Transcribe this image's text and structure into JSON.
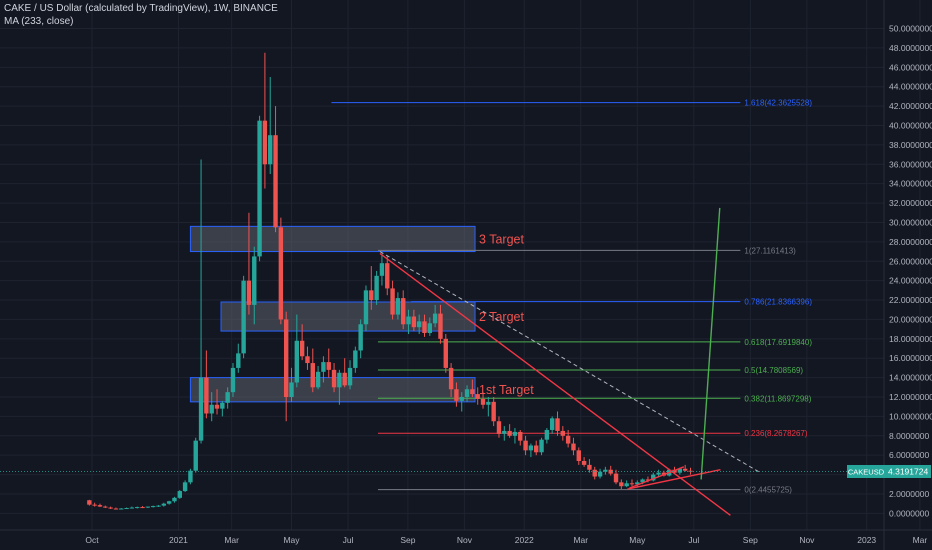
{
  "header": {
    "symbol_line": "CAKE / US Dollar (calculated by TradingView), 1W, BINANCE",
    "indicator_line": "MA (233, close)"
  },
  "price_label": {
    "symbol": "CAKEUSD",
    "value": "4.3191724"
  },
  "colors": {
    "background": "#131722",
    "grid": "#1f2330",
    "text": "#b2b5be",
    "up": "#26a69a",
    "down": "#ef5350",
    "trend": "#f23645",
    "projection": "#4caf50",
    "zone_fill": "#5d606b",
    "zone_border": "#2962ff"
  },
  "chart_data": {
    "type": "candlestick",
    "title": "CAKE / US Dollar (calculated by TradingView), 1W, BINANCE",
    "y_ticks": [
      0,
      2,
      4,
      6,
      8,
      10,
      12,
      14,
      16,
      18,
      20,
      22,
      24,
      26,
      28,
      30,
      32,
      34,
      36,
      38,
      40,
      42,
      44,
      46,
      48,
      50
    ],
    "y_tick_labels": [
      "0.0000000",
      "2.0000000",
      "4.0000000",
      "6.0000000",
      "8.0000000",
      "10.0000000",
      "12.0000000",
      "14.0000000",
      "16.0000000",
      "18.0000000",
      "20.0000000",
      "22.0000000",
      "24.0000000",
      "26.0000000",
      "28.0000000",
      "30.0000000",
      "32.0000000",
      "34.0000000",
      "36.0000000",
      "38.0000000",
      "40.0000000",
      "42.0000000",
      "44.0000000",
      "46.0000000",
      "48.0000000",
      "50.0000000"
    ],
    "ylim": [
      -1.2,
      51.5
    ],
    "x_ticks": [
      {
        "label": "Oct",
        "week": 0
      },
      {
        "label": "2021",
        "week": 13
      },
      {
        "label": "Mar",
        "week": 21
      },
      {
        "label": "May",
        "week": 30
      },
      {
        "label": "Jul",
        "week": 38.5
      },
      {
        "label": "Sep",
        "week": 47.5
      },
      {
        "label": "Nov",
        "week": 56
      },
      {
        "label": "2022",
        "week": 65
      },
      {
        "label": "Mar",
        "week": 73.5
      },
      {
        "label": "May",
        "week": 82
      },
      {
        "label": "Jul",
        "week": 90.5
      },
      {
        "label": "Sep",
        "week": 99
      },
      {
        "label": "Nov",
        "week": 107.5
      },
      {
        "label": "2023",
        "week": 116.5
      },
      {
        "label": "Mar",
        "week": 124.5
      }
    ],
    "candles": [
      [
        -0.4,
        1.35,
        1.4,
        0.8,
        0.9
      ],
      [
        0.4,
        0.9,
        1.1,
        0.7,
        0.85
      ],
      [
        1.2,
        0.85,
        1.0,
        0.65,
        0.7
      ],
      [
        2.0,
        0.7,
        0.8,
        0.55,
        0.6
      ],
      [
        2.8,
        0.6,
        0.7,
        0.45,
        0.5
      ],
      [
        3.6,
        0.5,
        0.6,
        0.4,
        0.45
      ],
      [
        4.4,
        0.45,
        0.55,
        0.4,
        0.5
      ],
      [
        5.2,
        0.5,
        0.6,
        0.45,
        0.55
      ],
      [
        6.0,
        0.55,
        0.7,
        0.5,
        0.6
      ],
      [
        6.8,
        0.6,
        0.7,
        0.5,
        0.65
      ],
      [
        7.6,
        0.65,
        0.75,
        0.55,
        0.6
      ],
      [
        8.4,
        0.6,
        0.7,
        0.55,
        0.7
      ],
      [
        9.2,
        0.7,
        0.8,
        0.6,
        0.75
      ],
      [
        10.0,
        0.75,
        0.85,
        0.65,
        0.8
      ],
      [
        10.8,
        0.8,
        1.1,
        0.7,
        1.0
      ],
      [
        11.6,
        1.0,
        1.3,
        0.9,
        1.25
      ],
      [
        12.4,
        1.25,
        1.7,
        1.1,
        1.6
      ],
      [
        13.2,
        1.6,
        2.4,
        1.5,
        2.3
      ],
      [
        14.0,
        2.3,
        3.4,
        2.2,
        3.2
      ],
      [
        14.8,
        3.2,
        4.6,
        3.0,
        4.4
      ],
      [
        15.6,
        4.4,
        7.8,
        4.2,
        7.5
      ],
      [
        16.4,
        7.5,
        36.5,
        7.2,
        14.0
      ],
      [
        17.2,
        14.0,
        16.8,
        9.8,
        10.3
      ],
      [
        18.0,
        10.3,
        12.5,
        9.5,
        11.2
      ],
      [
        18.8,
        11.2,
        12.8,
        10.2,
        10.8
      ],
      [
        19.6,
        10.8,
        11.6,
        10.0,
        11.4
      ],
      [
        20.4,
        11.4,
        13.0,
        10.8,
        12.5
      ],
      [
        21.2,
        12.5,
        15.5,
        12.0,
        15.0
      ],
      [
        22.0,
        15.0,
        17.5,
        14.5,
        16.5
      ],
      [
        22.8,
        16.5,
        24.5,
        16.0,
        24.0
      ],
      [
        23.6,
        24.0,
        31.0,
        20.5,
        21.5
      ],
      [
        24.4,
        21.5,
        27.5,
        19.5,
        26.5
      ],
      [
        25.2,
        26.5,
        41.0,
        26.0,
        40.5
      ],
      [
        26.0,
        40.5,
        47.5,
        33.5,
        36.0
      ],
      [
        26.8,
        36.0,
        45.0,
        35.0,
        39.0
      ],
      [
        27.6,
        39.0,
        42.0,
        29.0,
        29.5
      ],
      [
        28.4,
        29.5,
        30.5,
        19.5,
        20.0
      ],
      [
        29.2,
        20.0,
        20.8,
        9.5,
        12.0
      ],
      [
        30.0,
        12.0,
        15.0,
        11.5,
        13.5
      ],
      [
        30.8,
        13.5,
        20.5,
        13.0,
        17.8
      ],
      [
        31.6,
        17.8,
        19.5,
        15.8,
        16.2
      ],
      [
        32.4,
        16.2,
        17.2,
        14.8,
        15.5
      ],
      [
        33.2,
        15.5,
        17.0,
        12.5,
        13.0
      ],
      [
        34.0,
        13.0,
        15.2,
        12.8,
        14.6
      ],
      [
        34.8,
        14.6,
        16.2,
        13.5,
        15.6
      ],
      [
        35.6,
        15.6,
        17.0,
        14.0,
        14.8
      ],
      [
        36.4,
        14.8,
        15.5,
        12.5,
        13.0
      ],
      [
        37.2,
        13.0,
        14.8,
        11.2,
        14.5
      ],
      [
        38.0,
        14.5,
        16.0,
        13.0,
        13.2
      ],
      [
        38.8,
        13.2,
        15.8,
        12.8,
        15.0
      ],
      [
        39.6,
        15.0,
        17.2,
        14.5,
        16.8
      ],
      [
        40.4,
        16.8,
        20.0,
        16.0,
        19.5
      ],
      [
        41.2,
        19.5,
        23.5,
        18.8,
        23.0
      ],
      [
        42.0,
        23.0,
        25.5,
        21.0,
        22.0
      ],
      [
        42.8,
        22.0,
        25.0,
        21.5,
        24.5
      ],
      [
        43.6,
        24.5,
        26.8,
        23.5,
        25.8
      ],
      [
        44.4,
        25.8,
        26.5,
        22.5,
        23.2
      ],
      [
        45.2,
        23.2,
        24.0,
        20.0,
        20.5
      ],
      [
        46.0,
        20.5,
        22.8,
        20.0,
        22.2
      ],
      [
        46.8,
        22.2,
        23.0,
        19.0,
        19.5
      ],
      [
        47.6,
        19.5,
        21.0,
        18.5,
        20.3
      ],
      [
        48.4,
        20.3,
        21.0,
        18.8,
        19.2
      ],
      [
        49.2,
        19.2,
        20.5,
        18.5,
        19.8
      ],
      [
        50.0,
        19.8,
        20.5,
        18.2,
        18.6
      ],
      [
        50.8,
        18.6,
        20.2,
        18.3,
        19.6
      ],
      [
        51.6,
        19.6,
        21.5,
        19.2,
        20.6
      ],
      [
        52.4,
        20.6,
        21.5,
        17.5,
        18.0
      ],
      [
        53.2,
        18.0,
        18.5,
        14.5,
        15.0
      ],
      [
        54.0,
        15.0,
        15.5,
        12.0,
        12.8
      ],
      [
        54.8,
        12.8,
        13.5,
        11.0,
        11.6
      ],
      [
        55.6,
        11.6,
        12.5,
        10.5,
        12.0
      ],
      [
        56.4,
        12.0,
        13.2,
        11.5,
        12.8
      ],
      [
        57.2,
        12.8,
        13.8,
        12.0,
        12.3
      ],
      [
        58.0,
        12.3,
        13.0,
        11.2,
        11.8
      ],
      [
        58.8,
        11.8,
        12.5,
        10.8,
        11.2
      ],
      [
        59.6,
        11.2,
        12.0,
        10.0,
        11.5
      ],
      [
        60.4,
        11.5,
        12.0,
        9.0,
        9.5
      ],
      [
        61.2,
        9.5,
        10.0,
        7.8,
        8.2
      ],
      [
        62.0,
        8.2,
        9.0,
        7.5,
        8.5
      ],
      [
        62.8,
        8.5,
        9.2,
        7.8,
        8.0
      ],
      [
        63.6,
        8.0,
        8.8,
        7.2,
        8.4
      ],
      [
        64.4,
        8.4,
        8.6,
        7.0,
        7.5
      ],
      [
        65.2,
        7.5,
        8.0,
        6.0,
        6.5
      ],
      [
        66.0,
        6.5,
        7.2,
        5.8,
        7.0
      ],
      [
        66.8,
        7.0,
        7.5,
        6.0,
        6.3
      ],
      [
        67.6,
        6.3,
        7.8,
        6.0,
        7.6
      ],
      [
        68.4,
        7.6,
        8.8,
        7.2,
        8.6
      ],
      [
        69.2,
        8.6,
        10.0,
        8.2,
        9.8
      ],
      [
        70.0,
        9.8,
        10.5,
        8.0,
        8.5
      ],
      [
        70.8,
        8.5,
        9.0,
        7.5,
        8.0
      ],
      [
        71.6,
        8.0,
        8.6,
        6.8,
        7.2
      ],
      [
        72.4,
        7.2,
        7.8,
        6.0,
        6.5
      ],
      [
        73.2,
        6.5,
        6.8,
        5.0,
        5.4
      ],
      [
        74.0,
        5.4,
        5.8,
        4.8,
        5.0
      ],
      [
        74.8,
        5.0,
        5.6,
        4.2,
        4.5
      ],
      [
        75.6,
        4.5,
        4.8,
        3.5,
        3.8
      ],
      [
        76.4,
        3.8,
        4.6,
        3.6,
        4.3
      ],
      [
        77.2,
        4.3,
        4.8,
        4.0,
        4.5
      ],
      [
        78.0,
        4.5,
        4.9,
        3.9,
        4.1
      ],
      [
        78.8,
        4.1,
        4.5,
        3.0,
        3.2
      ],
      [
        79.6,
        3.2,
        3.5,
        2.5,
        2.8
      ],
      [
        80.4,
        2.8,
        3.4,
        2.7,
        3.1
      ],
      [
        81.2,
        3.1,
        3.5,
        2.8,
        3.0
      ],
      [
        82.0,
        3.0,
        3.4,
        2.7,
        3.2
      ],
      [
        82.8,
        3.2,
        3.6,
        3.0,
        3.5
      ],
      [
        83.6,
        3.5,
        3.8,
        3.2,
        3.4
      ],
      [
        84.4,
        3.4,
        4.2,
        3.3,
        4.0
      ],
      [
        85.2,
        4.0,
        4.5,
        3.7,
        4.2
      ],
      [
        86.0,
        4.2,
        4.4,
        3.8,
        3.9
      ],
      [
        86.8,
        3.9,
        4.6,
        3.8,
        4.5
      ],
      [
        87.6,
        4.5,
        4.8,
        4.1,
        4.2
      ],
      [
        88.4,
        4.2,
        4.7,
        4.0,
        4.6
      ],
      [
        89.2,
        4.6,
        5.0,
        4.3,
        4.4
      ],
      [
        90.0,
        4.4,
        4.7,
        4.0,
        4.32
      ]
    ],
    "zones": [
      {
        "w0": 14.8,
        "w1": 57.6,
        "y0": 27.0,
        "y1": 29.6,
        "label": "3 Target"
      },
      {
        "w0": 19.4,
        "w1": 57.6,
        "y0": 18.8,
        "y1": 21.8,
        "label": "2 Target"
      },
      {
        "w0": 14.8,
        "w1": 57.6,
        "y0": 11.5,
        "y1": 14.0,
        "label": "1st Target"
      }
    ],
    "fib_levels": [
      {
        "value": 42.3625528,
        "label": "1.618(42.3625528)",
        "color": "#2962ff",
        "w0": 36.0
      },
      {
        "value": 27.1161413,
        "label": "1(27.1161413)",
        "color": "#787b86",
        "w0": 43.0
      },
      {
        "value": 21.8366396,
        "label": "0.786(21.8366396)",
        "color": "#2962ff",
        "w0": 48.0
      },
      {
        "value": 17.691984,
        "label": "0.618(17.6919840)",
        "color": "#4caf50",
        "w0": 43.0
      },
      {
        "value": 14.7808569,
        "label": "0.5(14.7808569)",
        "color": "#4caf50",
        "w0": 43.0
      },
      {
        "value": 11.8697298,
        "label": "0.382(11.8697298)",
        "color": "#4caf50",
        "w0": 43.0
      },
      {
        "value": 8.2678267,
        "label": "0.236(8.2678267)",
        "color": "#f23645",
        "w0": 43.0
      },
      {
        "value": 2.4455725,
        "label": "0(2.4455725)",
        "color": "#787b86",
        "w0": 43.0
      }
    ],
    "fib_x_end": 97.5,
    "trendlines": [
      {
        "kind": "solid",
        "color": "#f23645",
        "from": [
          43.3,
          26.8
        ],
        "to": [
          96.0,
          -0.2
        ]
      },
      {
        "kind": "dashed",
        "color": "#b2b5be",
        "from": [
          43.3,
          27.0
        ],
        "to": [
          100.5,
          4.2
        ]
      },
      {
        "kind": "solid",
        "color": "#f23645",
        "from": [
          80.5,
          2.5
        ],
        "to": [
          94.5,
          4.5
        ]
      },
      {
        "kind": "solid",
        "color": "#f23645",
        "from": [
          80.8,
          2.6
        ],
        "to": [
          89.0,
          4.8
        ]
      },
      {
        "kind": "solid",
        "color": "#4caf50",
        "from": [
          91.6,
          3.5
        ],
        "to": [
          94.4,
          31.5
        ]
      }
    ],
    "current_price": 4.3191724
  }
}
